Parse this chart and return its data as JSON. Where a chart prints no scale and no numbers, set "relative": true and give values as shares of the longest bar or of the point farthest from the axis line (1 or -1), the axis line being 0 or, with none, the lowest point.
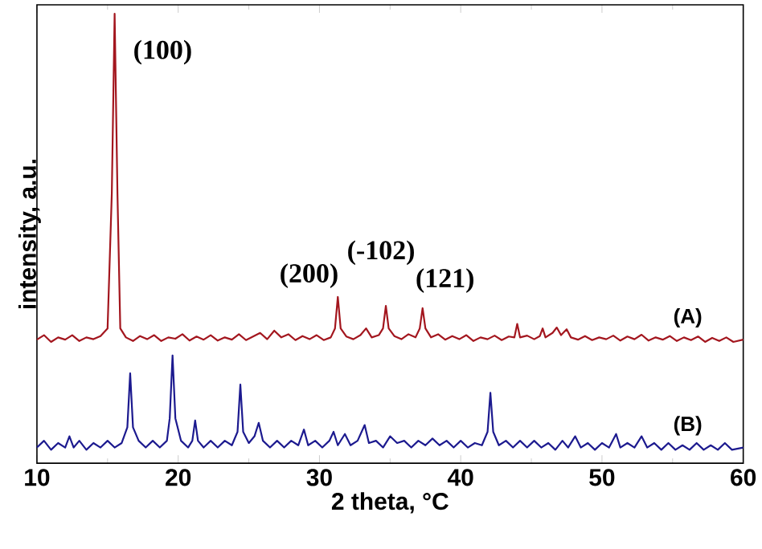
{
  "chart_data": {
    "type": "line",
    "xlabel": "2 theta, °C",
    "ylabel": "intensity, a.u.",
    "relative": true,
    "tick_labels": "x",
    "xlim": [
      10,
      60
    ],
    "xticks": [
      10,
      20,
      30,
      40,
      50,
      60
    ],
    "series": [
      {
        "name": "(A)",
        "color": "#a3161e",
        "x": [
          10,
          10.5,
          11,
          11.5,
          12,
          12.5,
          13,
          13.5,
          14,
          14.5,
          15.0,
          15.3,
          15.5,
          15.7,
          15.9,
          16.3,
          16.8,
          17.3,
          17.8,
          18.3,
          18.8,
          19.3,
          19.8,
          20.3,
          20.8,
          21.3,
          21.8,
          22.3,
          22.8,
          23.3,
          23.8,
          24.3,
          24.8,
          25.3,
          25.8,
          26.3,
          26.8,
          27.3,
          27.8,
          28.3,
          28.8,
          29.3,
          29.8,
          30.3,
          30.8,
          31.1,
          31.3,
          31.5,
          31.9,
          32.4,
          32.9,
          33.3,
          33.7,
          34.2,
          34.5,
          34.7,
          34.9,
          35.3,
          35.8,
          36.3,
          36.8,
          37.1,
          37.3,
          37.5,
          37.9,
          38.4,
          38.9,
          39.4,
          39.9,
          40.4,
          40.9,
          41.4,
          41.9,
          42.4,
          42.9,
          43.4,
          43.8,
          44.0,
          44.2,
          44.7,
          45.2,
          45.6,
          45.8,
          46.0,
          46.5,
          46.8,
          47.1,
          47.5,
          47.8,
          48.3,
          48.8,
          49.3,
          49.8,
          50.3,
          50.8,
          51.3,
          51.8,
          52.3,
          52.8,
          53.3,
          53.8,
          54.3,
          54.8,
          55.3,
          55.8,
          56.3,
          56.8,
          57.3,
          57.8,
          58.3,
          58.8,
          59.3,
          60
        ],
        "values": [
          0.275,
          0.285,
          0.27,
          0.28,
          0.275,
          0.285,
          0.272,
          0.28,
          0.276,
          0.283,
          0.3,
          0.6,
          1.0,
          0.6,
          0.3,
          0.28,
          0.272,
          0.283,
          0.276,
          0.285,
          0.272,
          0.28,
          0.277,
          0.287,
          0.273,
          0.282,
          0.275,
          0.285,
          0.273,
          0.28,
          0.275,
          0.287,
          0.274,
          0.282,
          0.29,
          0.276,
          0.295,
          0.28,
          0.287,
          0.274,
          0.283,
          0.276,
          0.285,
          0.274,
          0.28,
          0.3,
          0.37,
          0.3,
          0.282,
          0.276,
          0.285,
          0.3,
          0.28,
          0.285,
          0.3,
          0.35,
          0.3,
          0.283,
          0.276,
          0.287,
          0.28,
          0.3,
          0.345,
          0.3,
          0.28,
          0.287,
          0.275,
          0.283,
          0.276,
          0.285,
          0.272,
          0.28,
          0.276,
          0.284,
          0.274,
          0.282,
          0.28,
          0.31,
          0.28,
          0.284,
          0.276,
          0.283,
          0.3,
          0.28,
          0.29,
          0.302,
          0.285,
          0.298,
          0.28,
          0.275,
          0.283,
          0.274,
          0.28,
          0.276,
          0.284,
          0.273,
          0.282,
          0.276,
          0.286,
          0.273,
          0.28,
          0.275,
          0.283,
          0.272,
          0.28,
          0.274,
          0.282,
          0.27,
          0.279,
          0.272,
          0.28,
          0.27,
          0.275
        ]
      },
      {
        "name": "(B)",
        "color": "#1c1a8f",
        "x": [
          10,
          10.5,
          11,
          11.5,
          12,
          12.3,
          12.6,
          13,
          13.5,
          14,
          14.5,
          15,
          15.5,
          16,
          16.4,
          16.6,
          16.8,
          17.2,
          17.7,
          18.2,
          18.7,
          19.2,
          19.4,
          19.6,
          19.8,
          20.2,
          20.7,
          21.0,
          21.2,
          21.4,
          21.8,
          22.3,
          22.8,
          23.3,
          23.8,
          24.2,
          24.4,
          24.6,
          25.0,
          25.4,
          25.7,
          26.0,
          26.5,
          27,
          27.5,
          28,
          28.5,
          28.9,
          29.2,
          29.7,
          30.2,
          30.7,
          31.0,
          31.3,
          31.8,
          32.2,
          32.7,
          33.2,
          33.5,
          34,
          34.5,
          35,
          35.5,
          36,
          36.5,
          37,
          37.5,
          38,
          38.5,
          39,
          39.5,
          40,
          40.5,
          41,
          41.5,
          41.9,
          42.1,
          42.3,
          42.7,
          43.2,
          43.7,
          44.2,
          44.7,
          45.2,
          45.7,
          46.2,
          46.7,
          47.2,
          47.6,
          48.1,
          48.5,
          49,
          49.5,
          50,
          50.5,
          51,
          51.3,
          51.8,
          52.3,
          52.8,
          53.2,
          53.7,
          54.2,
          54.7,
          55.2,
          55.7,
          56.2,
          56.7,
          57.2,
          57.7,
          58.2,
          58.7,
          59.2,
          60
        ],
        "values": [
          0.035,
          0.05,
          0.03,
          0.045,
          0.035,
          0.06,
          0.035,
          0.05,
          0.03,
          0.045,
          0.035,
          0.05,
          0.035,
          0.045,
          0.08,
          0.2,
          0.08,
          0.05,
          0.035,
          0.05,
          0.035,
          0.05,
          0.1,
          0.24,
          0.1,
          0.05,
          0.035,
          0.05,
          0.095,
          0.05,
          0.035,
          0.05,
          0.035,
          0.05,
          0.04,
          0.07,
          0.175,
          0.07,
          0.045,
          0.06,
          0.09,
          0.05,
          0.035,
          0.05,
          0.035,
          0.05,
          0.04,
          0.075,
          0.04,
          0.05,
          0.035,
          0.05,
          0.07,
          0.04,
          0.065,
          0.04,
          0.05,
          0.085,
          0.045,
          0.05,
          0.035,
          0.06,
          0.045,
          0.05,
          0.035,
          0.05,
          0.04,
          0.055,
          0.04,
          0.05,
          0.035,
          0.05,
          0.035,
          0.045,
          0.04,
          0.07,
          0.157,
          0.07,
          0.04,
          0.05,
          0.035,
          0.05,
          0.035,
          0.05,
          0.035,
          0.045,
          0.03,
          0.05,
          0.035,
          0.06,
          0.035,
          0.045,
          0.03,
          0.045,
          0.035,
          0.065,
          0.035,
          0.045,
          0.035,
          0.06,
          0.035,
          0.045,
          0.03,
          0.045,
          0.03,
          0.04,
          0.03,
          0.045,
          0.03,
          0.04,
          0.03,
          0.045,
          0.03,
          0.035
        ]
      }
    ],
    "annotations": [
      {
        "text": "(100)",
        "x": 15.5,
        "y": 1.0
      },
      {
        "text": "(200)",
        "x": 31.3,
        "y": 0.37
      },
      {
        "text": "(-102)",
        "x": 34.7,
        "y": 0.35
      },
      {
        "text": "(121)",
        "x": 37.3,
        "y": 0.345
      }
    ]
  }
}
